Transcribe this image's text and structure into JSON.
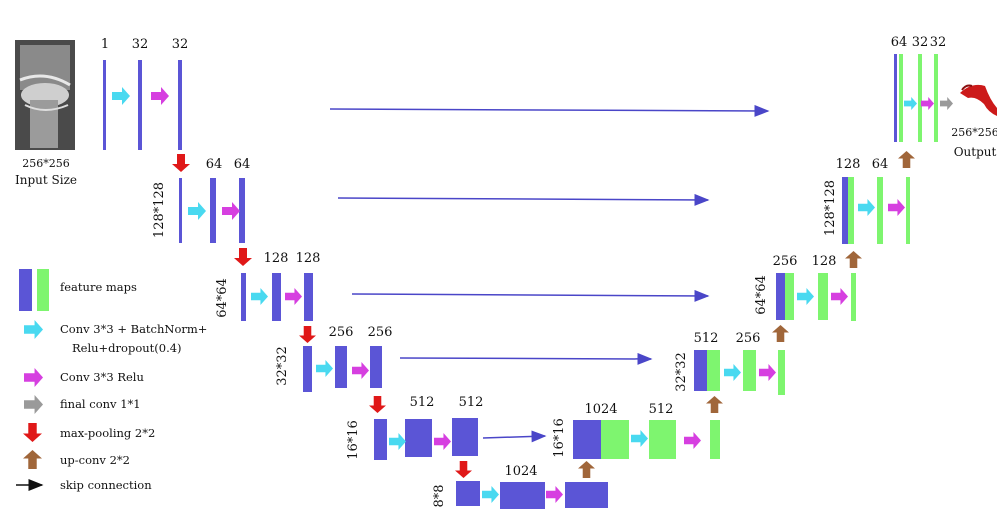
{
  "colors": {
    "feature_blue": "#5b55d6",
    "feature_green": "#7ef56f",
    "conv_bn": "#49d9f0",
    "conv_relu": "#d63fe0",
    "final_conv": "#9a9a9a",
    "max_pool": "#e01818",
    "up_conv": "#a0663a",
    "skip": "#4a46c8"
  },
  "input": {
    "size_line1": "256*256",
    "size_line2": "Input Size"
  },
  "output": {
    "size_line1": "256*256",
    "size_line2": "Output"
  },
  "encoder": {
    "l1": {
      "ch_a": "1",
      "ch_b": "32",
      "ch_c": "32"
    },
    "l2": {
      "res": "128*128",
      "ch_a": "64",
      "ch_b": "64"
    },
    "l3": {
      "res": "64*64",
      "ch_a": "128",
      "ch_b": "128"
    },
    "l4": {
      "res": "32*32",
      "ch_a": "256",
      "ch_b": "256"
    },
    "l5": {
      "res": "16*16",
      "ch_a": "512",
      "ch_b": "512"
    },
    "bottom": {
      "res": "8*8",
      "ch": "1024"
    }
  },
  "decoder": {
    "d5": {
      "res": "16*16",
      "ch_a": "1024",
      "ch_b": "512"
    },
    "d4": {
      "res": "32*32",
      "ch_a": "512",
      "ch_b": "256"
    },
    "d3": {
      "res": "64*64",
      "ch_a": "256",
      "ch_b": "128"
    },
    "d2": {
      "res": "128*128",
      "ch_a": "128",
      "ch_b": "64"
    },
    "d1": {
      "ch_a": "64",
      "ch_b": "32",
      "ch_c": "32"
    }
  },
  "legend": {
    "feature_maps": "feature maps",
    "conv_bn_line1": "Conv 3*3 + BatchNorm+",
    "conv_bn_line2": "Relu+dropout(0.4)",
    "conv_relu": "Conv 3*3 Relu",
    "final_conv": "final conv 1*1",
    "max_pool": "max-pooling 2*2",
    "up_conv": "up-conv 2*2",
    "skip": "skip connection"
  }
}
